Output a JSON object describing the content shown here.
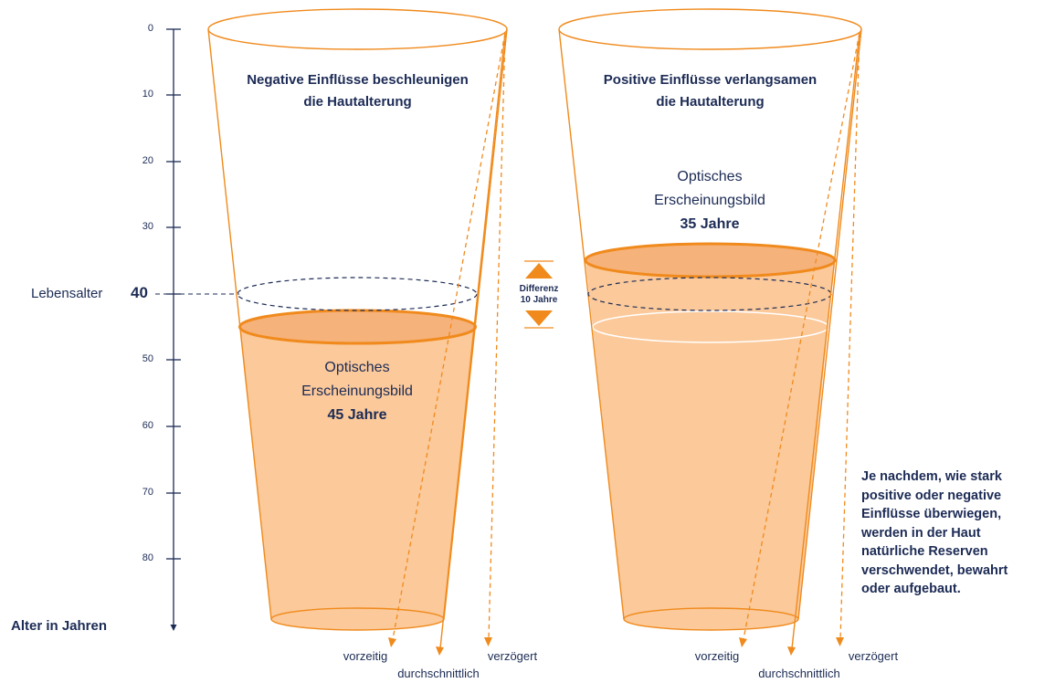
{
  "colors": {
    "orange": "#f08a1c",
    "fill": "#fbc99a",
    "navy": "#1c2b55"
  },
  "axis": {
    "ticks": [
      "0",
      "10",
      "20",
      "30",
      "40",
      "50",
      "60",
      "70",
      "80"
    ],
    "label": "Alter in Jahren",
    "life_age_label": "Lebensalter",
    "life_age_value": "40"
  },
  "left_cup": {
    "title_line1": "Negative Einflüsse beschleunigen",
    "title_line2": "die Hautalterung",
    "appearance_line1": "Optisches",
    "appearance_line2": "Erscheinungsbild",
    "appearance_age": "45 Jahre",
    "level_age": 45,
    "arrows": {
      "early": "vorzeitig",
      "average": "durchschnittlich",
      "delayed": "verzögert"
    }
  },
  "right_cup": {
    "title_line1": "Positive Einflüsse verlangsamen",
    "title_line2": "die Hautalterung",
    "appearance_line1": "Optisches",
    "appearance_line2": "Erscheinungsbild",
    "appearance_age": "35 Jahre",
    "level_age": 35,
    "arrows": {
      "early": "vorzeitig",
      "average": "durchschnittlich",
      "delayed": "verzögert"
    }
  },
  "difference": {
    "line1": "Differenz",
    "line2": "10 Jahre"
  },
  "note_lines": [
    "Je nachdem, wie stark",
    "positive oder negative",
    "Einflüsse überwiegen,",
    "werden in der Haut",
    "natürliche Reserven",
    "verschwendet, bewahrt",
    "oder aufgebaut."
  ]
}
